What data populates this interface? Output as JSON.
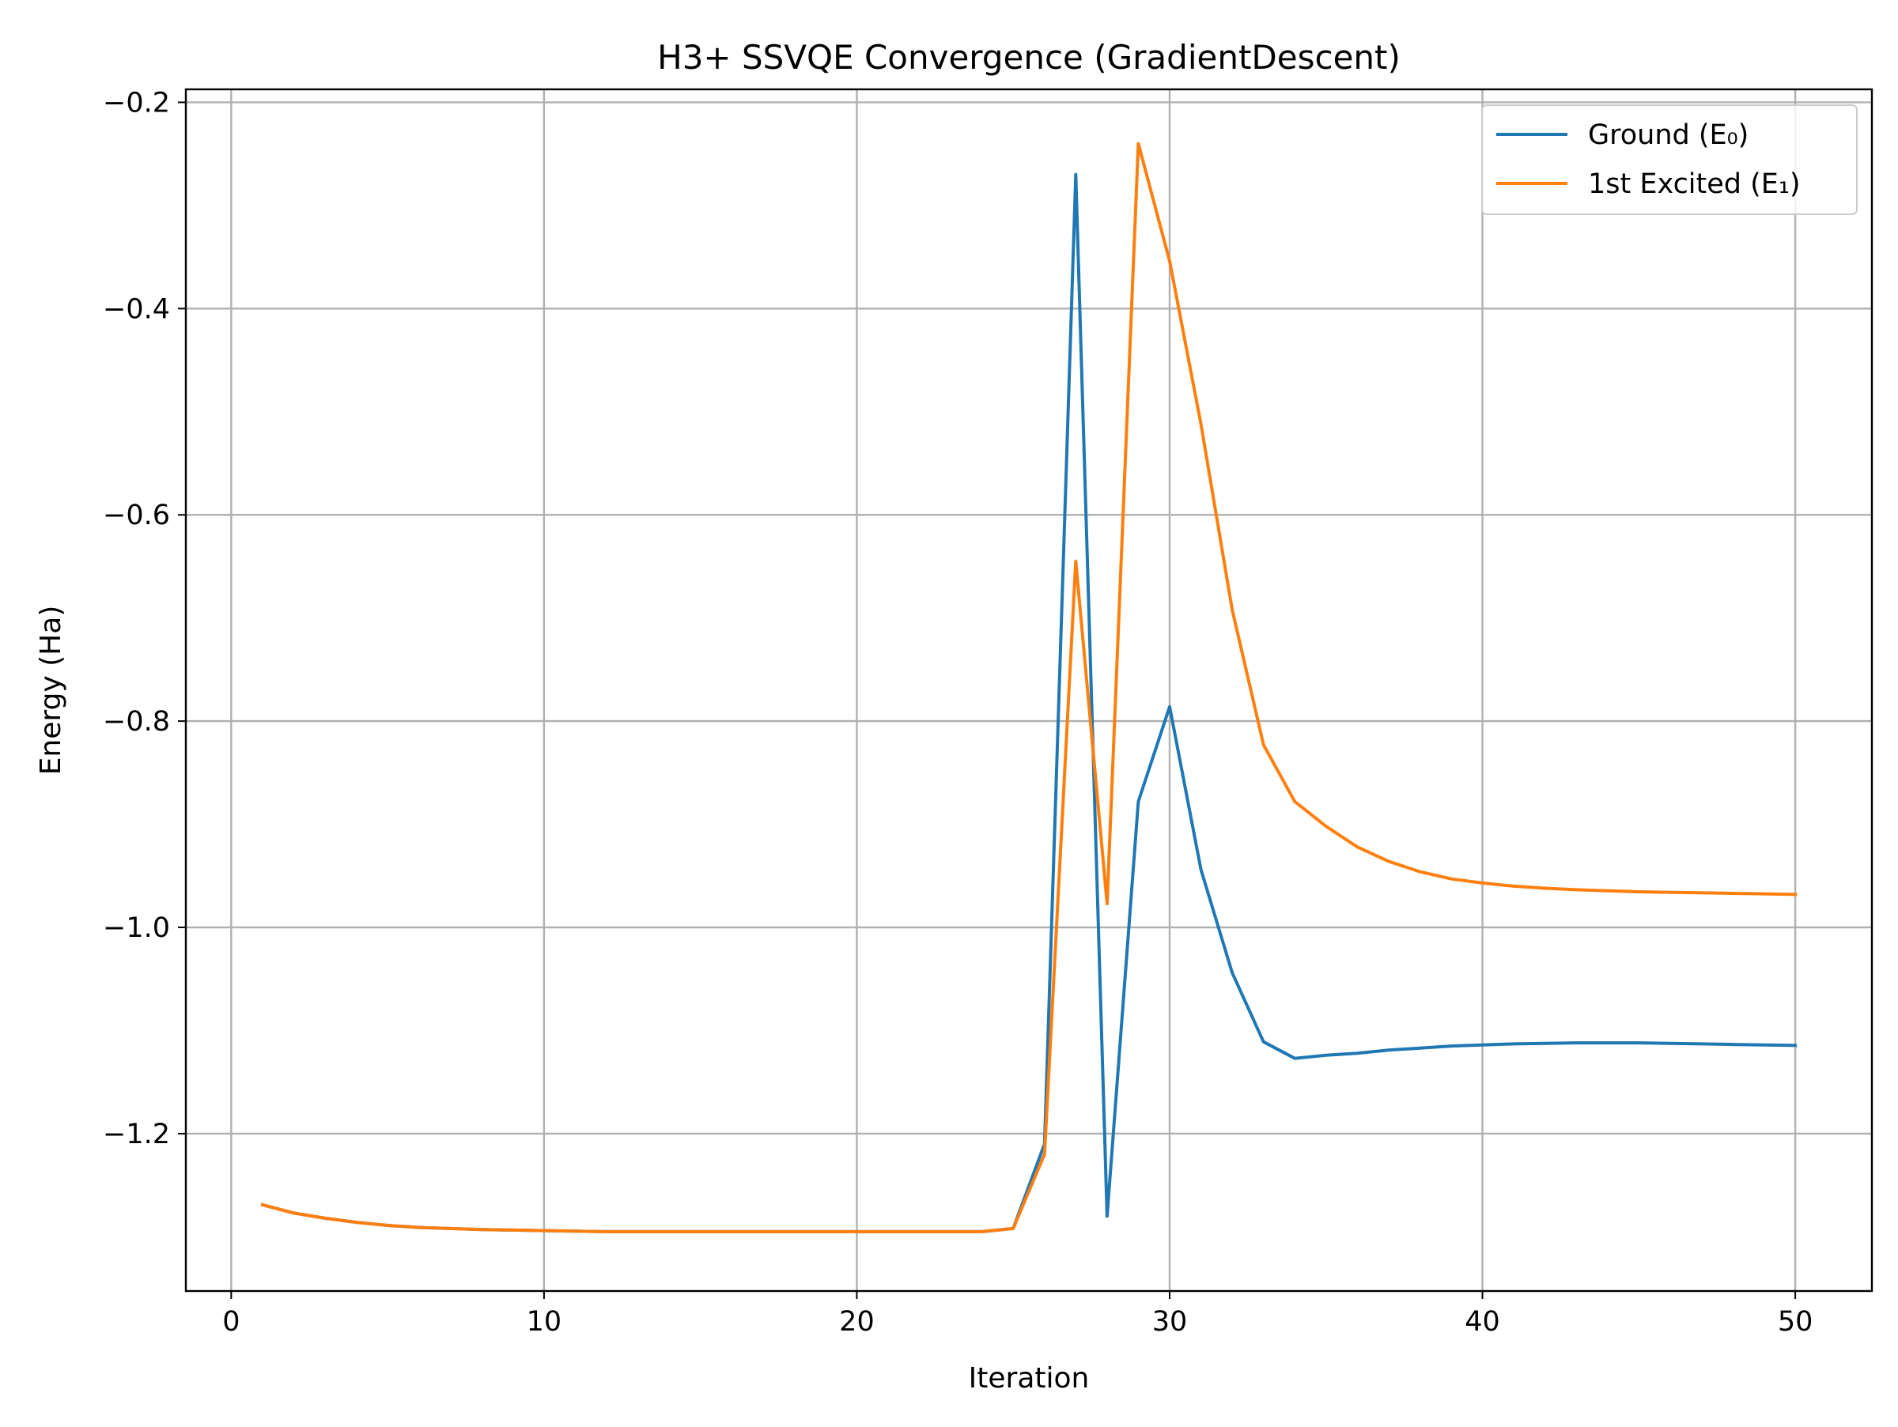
{
  "chart_data": {
    "type": "line",
    "title": "H3+ SSVQE Convergence (GradientDescent)",
    "xlabel": "Iteration",
    "ylabel": "Energy (Ha)",
    "xlim": [
      -1.45,
      52.45
    ],
    "ylim": [
      -1.3526,
      -0.1874
    ],
    "xticks": [
      0,
      10,
      20,
      30,
      40,
      50
    ],
    "xtick_labels": [
      "0",
      "10",
      "20",
      "30",
      "40",
      "50"
    ],
    "yticks": [
      -1.2,
      -1.0,
      -0.8,
      -0.6,
      -0.4,
      -0.2
    ],
    "ytick_labels": [
      "−1.2",
      "−1.0",
      "−0.8",
      "−0.6",
      "−0.4",
      "−0.2"
    ],
    "grid": true,
    "legend_position": "top-right",
    "x": [
      1,
      2,
      3,
      4,
      5,
      6,
      7,
      8,
      9,
      10,
      11,
      12,
      13,
      14,
      15,
      16,
      17,
      18,
      19,
      20,
      21,
      22,
      23,
      24,
      25,
      26,
      27,
      28,
      29,
      30,
      31,
      32,
      33,
      34,
      35,
      36,
      37,
      38,
      39,
      40,
      41,
      42,
      43,
      44,
      45,
      46,
      47,
      48,
      49,
      50
    ],
    "series": [
      {
        "name": "Ground (E₀)",
        "color": "#1f77b4",
        "values": [
          -1.269,
          -1.277,
          -1.282,
          -1.286,
          -1.289,
          -1.291,
          -1.292,
          -1.293,
          -1.2935,
          -1.294,
          -1.2945,
          -1.295,
          -1.295,
          -1.295,
          -1.295,
          -1.295,
          -1.295,
          -1.295,
          -1.295,
          -1.295,
          -1.295,
          -1.295,
          -1.295,
          -1.295,
          -1.292,
          -1.21,
          -0.27,
          -1.28,
          -0.878,
          -0.786,
          -0.944,
          -1.044,
          -1.111,
          -1.127,
          -1.124,
          -1.122,
          -1.119,
          -1.117,
          -1.115,
          -1.114,
          -1.113,
          -1.1125,
          -1.112,
          -1.112,
          -1.112,
          -1.1125,
          -1.113,
          -1.1135,
          -1.114,
          -1.1145
        ]
      },
      {
        "name": "1st Excited (E₁)",
        "color": "#ff7f0e",
        "values": [
          -1.269,
          -1.277,
          -1.282,
          -1.286,
          -1.289,
          -1.291,
          -1.292,
          -1.293,
          -1.2935,
          -1.294,
          -1.2945,
          -1.295,
          -1.295,
          -1.295,
          -1.295,
          -1.295,
          -1.295,
          -1.295,
          -1.295,
          -1.295,
          -1.295,
          -1.295,
          -1.295,
          -1.295,
          -1.292,
          -1.22,
          -0.645,
          -0.977,
          -0.24,
          -0.354,
          -0.512,
          -0.692,
          -0.823,
          -0.878,
          -0.902,
          -0.922,
          -0.936,
          -0.946,
          -0.953,
          -0.957,
          -0.96,
          -0.962,
          -0.9635,
          -0.9645,
          -0.9655,
          -0.966,
          -0.9665,
          -0.967,
          -0.9675,
          -0.968
        ]
      }
    ]
  }
}
